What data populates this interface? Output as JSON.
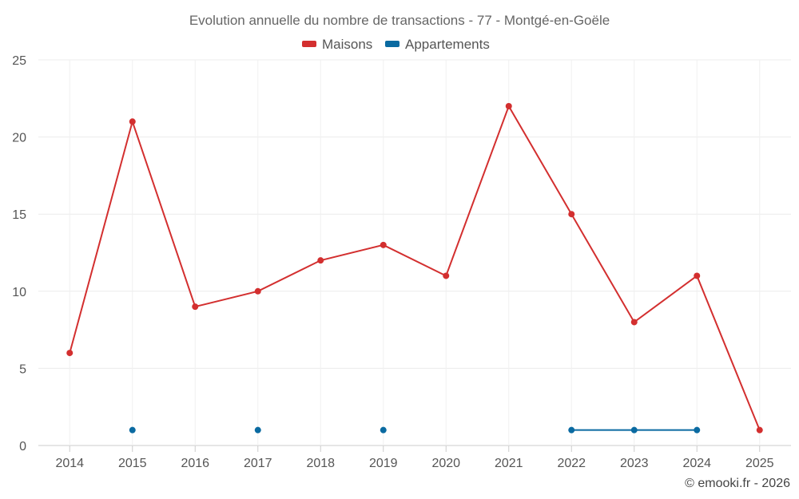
{
  "chart_data": {
    "type": "line",
    "title": "Evolution annuelle du nombre de transactions - 77 - Montgé-en-Goële",
    "categories": [
      "2014",
      "2015",
      "2016",
      "2017",
      "2018",
      "2019",
      "2020",
      "2021",
      "2022",
      "2023",
      "2024",
      "2025"
    ],
    "ylim": [
      0,
      25
    ],
    "yticks": [
      0,
      5,
      10,
      15,
      20,
      25
    ],
    "grid": true,
    "legend_position": "top-center",
    "series": [
      {
        "name": "Maisons",
        "color": "#d32f2f",
        "values": [
          6,
          21,
          9,
          10,
          12,
          13,
          11,
          22,
          15,
          8,
          11,
          1
        ]
      },
      {
        "name": "Appartements",
        "color": "#0a6aa1",
        "values": [
          null,
          1,
          null,
          1,
          null,
          1,
          null,
          null,
          1,
          1,
          1,
          null
        ]
      }
    ]
  },
  "credit": "© emooki.fr - 2026"
}
